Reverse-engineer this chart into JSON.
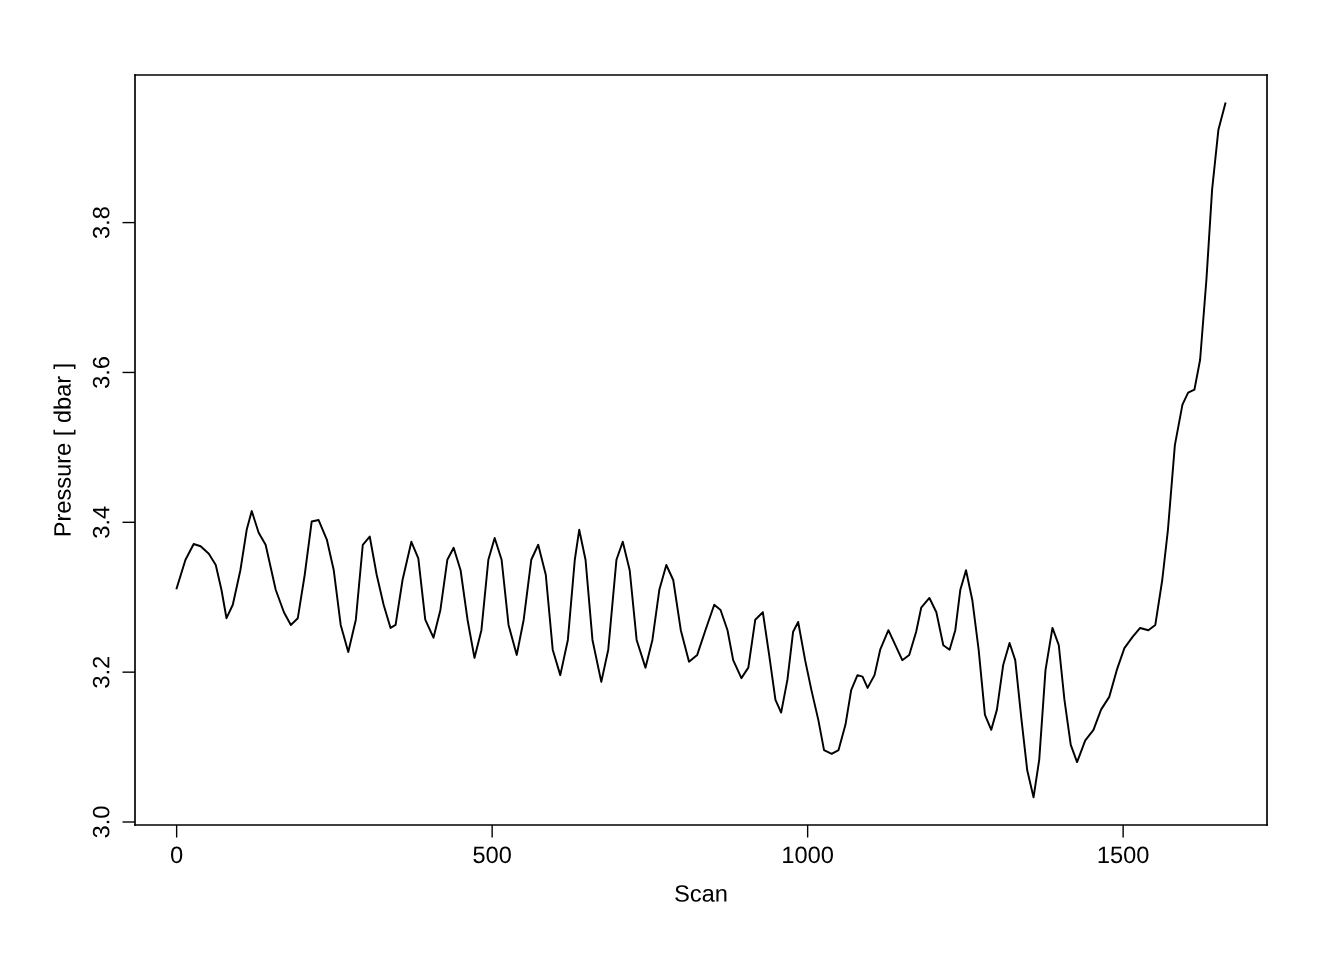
{
  "chart_data": {
    "type": "line",
    "xlabel": "Scan",
    "ylabel": "Pressure [ dbar ]",
    "xlim": [
      -66,
      1728
    ],
    "ylim": [
      2.996,
      3.997
    ],
    "xticks": [
      0,
      500,
      1000,
      1500
    ],
    "yticks": [
      {
        "value": 3.0,
        "label": "3.0"
      },
      {
        "value": 3.2,
        "label": "3.2"
      },
      {
        "value": 3.4,
        "label": "3.4"
      },
      {
        "value": 3.6,
        "label": "3.6"
      },
      {
        "value": 3.8,
        "label": "3.8"
      }
    ],
    "grid": false,
    "marker": "none",
    "line_style": "solid",
    "series": [
      {
        "color": "#000000",
        "x": [
          0,
          14,
          27,
          38,
          51,
          62,
          71,
          79,
          89,
          101,
          111,
          119,
          130,
          141,
          157,
          170,
          181,
          192,
          203,
          214,
          225,
          238,
          249,
          260,
          272,
          284,
          295,
          306,
          317,
          328,
          339,
          347,
          358,
          372,
          383,
          394,
          407,
          418,
          429,
          439,
          450,
          461,
          472,
          483,
          494,
          504,
          515,
          526,
          539,
          550,
          562,
          573,
          585,
          596,
          608,
          620,
          631,
          638,
          648,
          659,
          673,
          684,
          697,
          707,
          718,
          729,
          743,
          754,
          765,
          776,
          787,
          799,
          812,
          825,
          838,
          852,
          862,
          873,
          882,
          895,
          906,
          917,
          929,
          939,
          949,
          958,
          968,
          977,
          985,
          996,
          1006,
          1017,
          1026,
          1038,
          1049,
          1060,
          1069,
          1079,
          1087,
          1095,
          1106,
          1115,
          1128,
          1139,
          1150,
          1161,
          1172,
          1180,
          1193,
          1204,
          1215,
          1225,
          1234,
          1242,
          1251,
          1261,
          1271,
          1281,
          1291,
          1300,
          1310,
          1320,
          1329,
          1339,
          1348,
          1358,
          1367,
          1377,
          1388,
          1398,
          1407,
          1417,
          1427,
          1440,
          1453,
          1465,
          1478,
          1490,
          1502,
          1515,
          1527,
          1540,
          1551,
          1562,
          1571,
          1582,
          1594,
          1603,
          1613,
          1622,
          1632,
          1641,
          1651,
          1662
        ],
        "values": [
          3.312,
          3.35,
          3.371,
          3.368,
          3.358,
          3.343,
          3.31,
          3.272,
          3.29,
          3.336,
          3.39,
          3.415,
          3.386,
          3.37,
          3.31,
          3.28,
          3.263,
          3.272,
          3.33,
          3.401,
          3.403,
          3.377,
          3.336,
          3.263,
          3.227,
          3.27,
          3.37,
          3.381,
          3.33,
          3.29,
          3.259,
          3.263,
          3.323,
          3.374,
          3.352,
          3.27,
          3.246,
          3.283,
          3.35,
          3.366,
          3.336,
          3.27,
          3.219,
          3.256,
          3.35,
          3.379,
          3.35,
          3.263,
          3.223,
          3.27,
          3.35,
          3.37,
          3.33,
          3.23,
          3.196,
          3.243,
          3.35,
          3.39,
          3.35,
          3.243,
          3.187,
          3.23,
          3.35,
          3.374,
          3.336,
          3.243,
          3.206,
          3.243,
          3.31,
          3.343,
          3.323,
          3.256,
          3.214,
          3.223,
          3.256,
          3.29,
          3.283,
          3.256,
          3.216,
          3.192,
          3.206,
          3.27,
          3.28,
          3.223,
          3.163,
          3.146,
          3.19,
          3.254,
          3.267,
          3.216,
          3.176,
          3.136,
          3.096,
          3.091,
          3.096,
          3.13,
          3.176,
          3.196,
          3.194,
          3.179,
          3.196,
          3.23,
          3.256,
          3.236,
          3.216,
          3.223,
          3.254,
          3.286,
          3.299,
          3.28,
          3.236,
          3.23,
          3.256,
          3.31,
          3.336,
          3.296,
          3.23,
          3.143,
          3.123,
          3.15,
          3.21,
          3.239,
          3.216,
          3.136,
          3.069,
          3.033,
          3.083,
          3.203,
          3.259,
          3.236,
          3.163,
          3.103,
          3.08,
          3.109,
          3.123,
          3.15,
          3.167,
          3.203,
          3.232,
          3.247,
          3.259,
          3.256,
          3.263,
          3.323,
          3.39,
          3.503,
          3.557,
          3.573,
          3.577,
          3.617,
          3.724,
          3.844,
          3.924,
          3.959
        ]
      }
    ]
  }
}
